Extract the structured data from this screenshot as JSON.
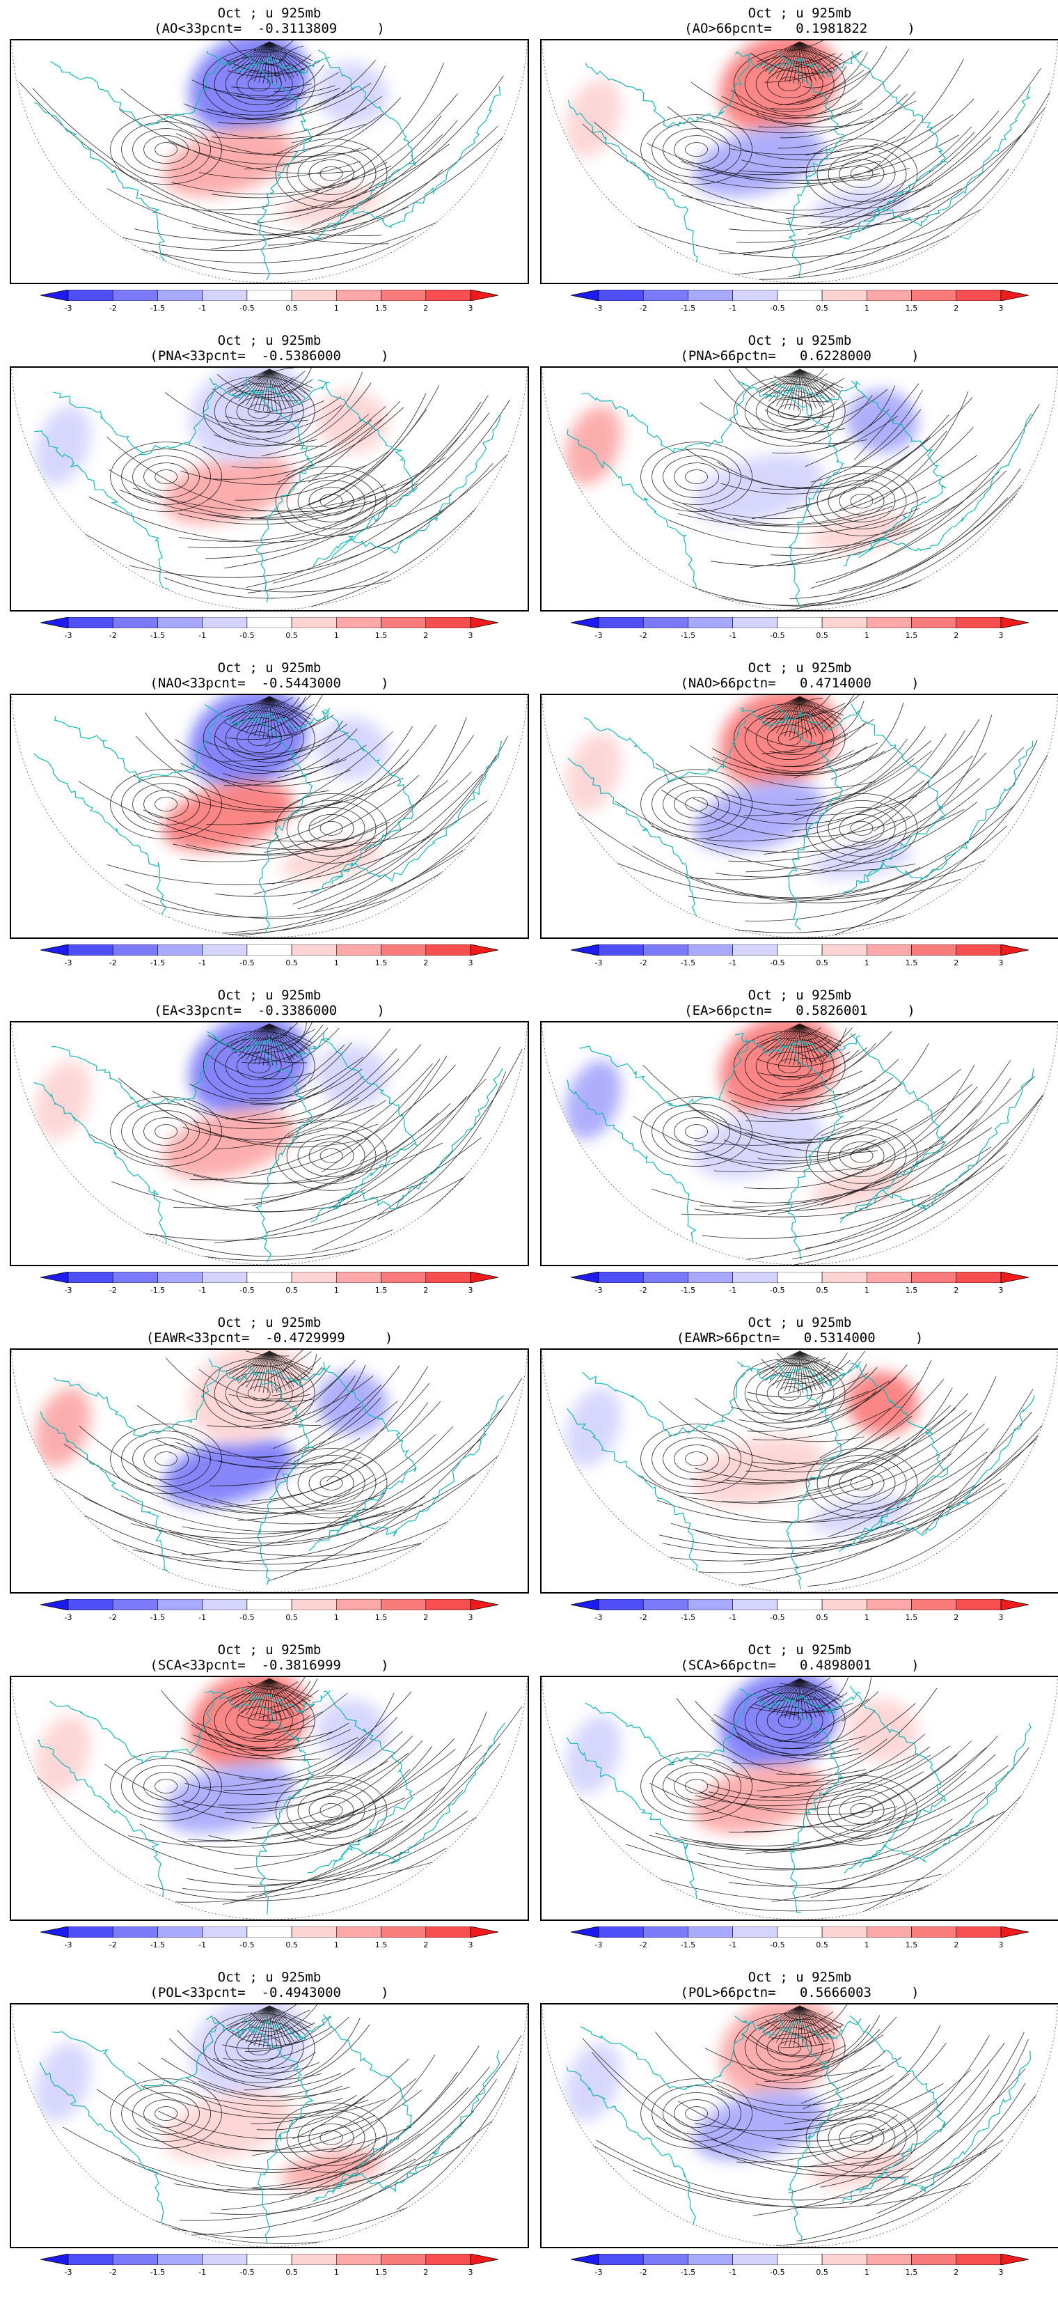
{
  "colorbar": {
    "ticks": [
      "-3",
      "-2",
      "-1.5",
      "-1",
      "-0.5",
      "0.5",
      "1",
      "1.5",
      "2",
      "3"
    ],
    "colors": [
      "#1b1bf2",
      "#4f4ff7",
      "#7b7bfa",
      "#a8a8fc",
      "#d4d4fe",
      "#ffffff",
      "#fdd4d4",
      "#fca8a8",
      "#fa7b7b",
      "#f74f4f",
      "#f21b1b"
    ]
  },
  "line_colors": {
    "streamline": "#000000",
    "coastline": "#11b7b7"
  },
  "panels": [
    {
      "line1": "Oct ; u 925mb",
      "line2": "(AO<33pcnt=  -0.3113809     )",
      "anomalies": [
        {
          "sign": "neg",
          "level": 3,
          "region": "arctic-atlantic"
        },
        {
          "sign": "pos",
          "level": 2,
          "region": "north-atlantic"
        },
        {
          "sign": "pos",
          "level": 1,
          "region": "europe"
        },
        {
          "sign": "neg",
          "level": 1,
          "region": "siberia"
        }
      ]
    },
    {
      "line1": "Oct ; u 925mb",
      "line2": "(AO>66pcnt=   0.1981822     )",
      "anomalies": [
        {
          "sign": "pos",
          "level": 3,
          "region": "arctic-atlantic"
        },
        {
          "sign": "neg",
          "level": 2,
          "region": "north-atlantic"
        },
        {
          "sign": "pos",
          "level": 1,
          "region": "pacific"
        },
        {
          "sign": "neg",
          "level": 1,
          "region": "europe"
        }
      ]
    },
    {
      "line1": "Oct ; u 925mb",
      "line2": "(PNA<33pcnt=  -0.5386000     )",
      "anomalies": [
        {
          "sign": "pos",
          "level": 2,
          "region": "north-atlantic"
        },
        {
          "sign": "neg",
          "level": 1,
          "region": "arctic-atlantic"
        },
        {
          "sign": "pos",
          "level": 1,
          "region": "siberia"
        },
        {
          "sign": "neg",
          "level": 1,
          "region": "pacific"
        }
      ]
    },
    {
      "line1": "Oct ; u 925mb",
      "line2": "(PNA>66pctn=   0.6228000     )",
      "anomalies": [
        {
          "sign": "neg",
          "level": 2,
          "region": "siberia"
        },
        {
          "sign": "neg",
          "level": 1,
          "region": "north-atlantic"
        },
        {
          "sign": "pos",
          "level": 2,
          "region": "pacific"
        },
        {
          "sign": "pos",
          "level": 1,
          "region": "europe"
        }
      ]
    },
    {
      "line1": "Oct ; u 925mb",
      "line2": "(NAO<33pcnt=  -0.5443000     )",
      "anomalies": [
        {
          "sign": "neg",
          "level": 3,
          "region": "arctic-atlantic"
        },
        {
          "sign": "pos",
          "level": 3,
          "region": "north-atlantic"
        },
        {
          "sign": "neg",
          "level": 1,
          "region": "siberia"
        },
        {
          "sign": "pos",
          "level": 1,
          "region": "europe"
        }
      ]
    },
    {
      "line1": "Oct ; u 925mb",
      "line2": "(NAO>66pctn=   0.4714000     )",
      "anomalies": [
        {
          "sign": "pos",
          "level": 3,
          "region": "arctic-atlantic"
        },
        {
          "sign": "neg",
          "level": 2,
          "region": "north-atlantic"
        },
        {
          "sign": "neg",
          "level": 1,
          "region": "europe"
        },
        {
          "sign": "pos",
          "level": 1,
          "region": "pacific"
        }
      ]
    },
    {
      "line1": "Oct ; u 925mb",
      "line2": "(EA<33pcnt=  -0.3386000     )",
      "anomalies": [
        {
          "sign": "neg",
          "level": 3,
          "region": "arctic-atlantic"
        },
        {
          "sign": "pos",
          "level": 2,
          "region": "north-atlantic"
        },
        {
          "sign": "pos",
          "level": 1,
          "region": "pacific"
        },
        {
          "sign": "neg",
          "level": 1,
          "region": "siberia"
        }
      ]
    },
    {
      "line1": "Oct ; u 925mb",
      "line2": "(EA>66pctn=   0.5826001     )",
      "anomalies": [
        {
          "sign": "pos",
          "level": 3,
          "region": "arctic-atlantic"
        },
        {
          "sign": "neg",
          "level": 2,
          "region": "pacific"
        },
        {
          "sign": "neg",
          "level": 1,
          "region": "north-atlantic"
        },
        {
          "sign": "pos",
          "level": 1,
          "region": "europe"
        }
      ]
    },
    {
      "line1": "Oct ; u 925mb",
      "line2": "(EAWR<33pcnt=  -0.4729999     )",
      "anomalies": [
        {
          "sign": "neg",
          "level": 3,
          "region": "north-atlantic"
        },
        {
          "sign": "neg",
          "level": 2,
          "region": "siberia"
        },
        {
          "sign": "pos",
          "level": 2,
          "region": "pacific"
        },
        {
          "sign": "pos",
          "level": 1,
          "region": "arctic-atlantic"
        }
      ]
    },
    {
      "line1": "Oct ; u 925mb",
      "line2": "(EAWR>66pctn=   0.5314000     )",
      "anomalies": [
        {
          "sign": "pos",
          "level": 3,
          "region": "siberia"
        },
        {
          "sign": "pos",
          "level": 1,
          "region": "north-atlantic"
        },
        {
          "sign": "neg",
          "level": 1,
          "region": "pacific"
        },
        {
          "sign": "neg",
          "level": 1,
          "region": "europe"
        }
      ]
    },
    {
      "line1": "Oct ; u 925mb",
      "line2": "(SCA<33pcnt=  -0.3816999     )",
      "anomalies": [
        {
          "sign": "pos",
          "level": 3,
          "region": "arctic-atlantic"
        },
        {
          "sign": "neg",
          "level": 2,
          "region": "north-atlantic"
        },
        {
          "sign": "neg",
          "level": 1,
          "region": "siberia"
        },
        {
          "sign": "pos",
          "level": 1,
          "region": "pacific"
        }
      ]
    },
    {
      "line1": "Oct ; u 925mb",
      "line2": "(SCA>66pctn=   0.4898001     )",
      "anomalies": [
        {
          "sign": "neg",
          "level": 3,
          "region": "arctic-atlantic"
        },
        {
          "sign": "pos",
          "level": 2,
          "region": "north-atlantic"
        },
        {
          "sign": "pos",
          "level": 1,
          "region": "siberia"
        },
        {
          "sign": "neg",
          "level": 1,
          "region": "pacific"
        }
      ]
    },
    {
      "line1": "Oct ; u 925mb",
      "line2": "(POL<33pcnt=  -0.4943000     )",
      "anomalies": [
        {
          "sign": "neg",
          "level": 1,
          "region": "arctic-atlantic"
        },
        {
          "sign": "pos",
          "level": 2,
          "region": "europe"
        },
        {
          "sign": "neg",
          "level": 1,
          "region": "pacific"
        },
        {
          "sign": "pos",
          "level": 1,
          "region": "north-atlantic"
        }
      ]
    },
    {
      "line1": "Oct ; u 925mb",
      "line2": "(POL>66pctn=   0.5666003     )",
      "anomalies": [
        {
          "sign": "pos",
          "level": 2,
          "region": "arctic-atlantic"
        },
        {
          "sign": "neg",
          "level": 2,
          "region": "north-atlantic"
        },
        {
          "sign": "neg",
          "level": 1,
          "region": "pacific"
        },
        {
          "sign": "pos",
          "level": 1,
          "region": "europe"
        }
      ]
    }
  ]
}
